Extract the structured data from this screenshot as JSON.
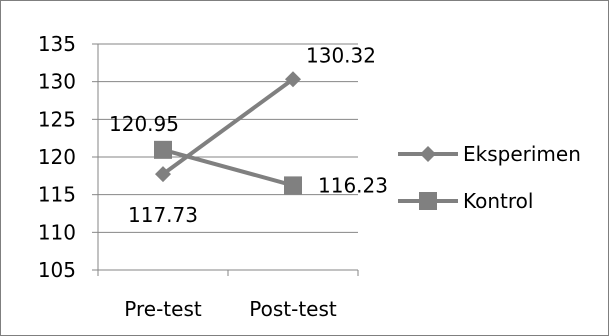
{
  "chart_data": {
    "type": "line",
    "title": "",
    "xlabel": "",
    "ylabel": "",
    "categories": [
      "Pre-test",
      "Post-test"
    ],
    "ylim": [
      105,
      135
    ],
    "yticks": [
      105,
      110,
      115,
      120,
      125,
      130,
      135
    ],
    "grid": true,
    "legend_position": "right",
    "series": [
      {
        "name": "Eksperimen",
        "values": [
          117.73,
          130.32
        ],
        "marker": "diamond",
        "color": "#808080",
        "data_labels": [
          "117.73",
          "130.32"
        ]
      },
      {
        "name": "Kontrol",
        "values": [
          120.95,
          116.23
        ],
        "marker": "square",
        "color": "#808080",
        "data_labels": [
          "120.95",
          "116.23"
        ]
      }
    ]
  }
}
